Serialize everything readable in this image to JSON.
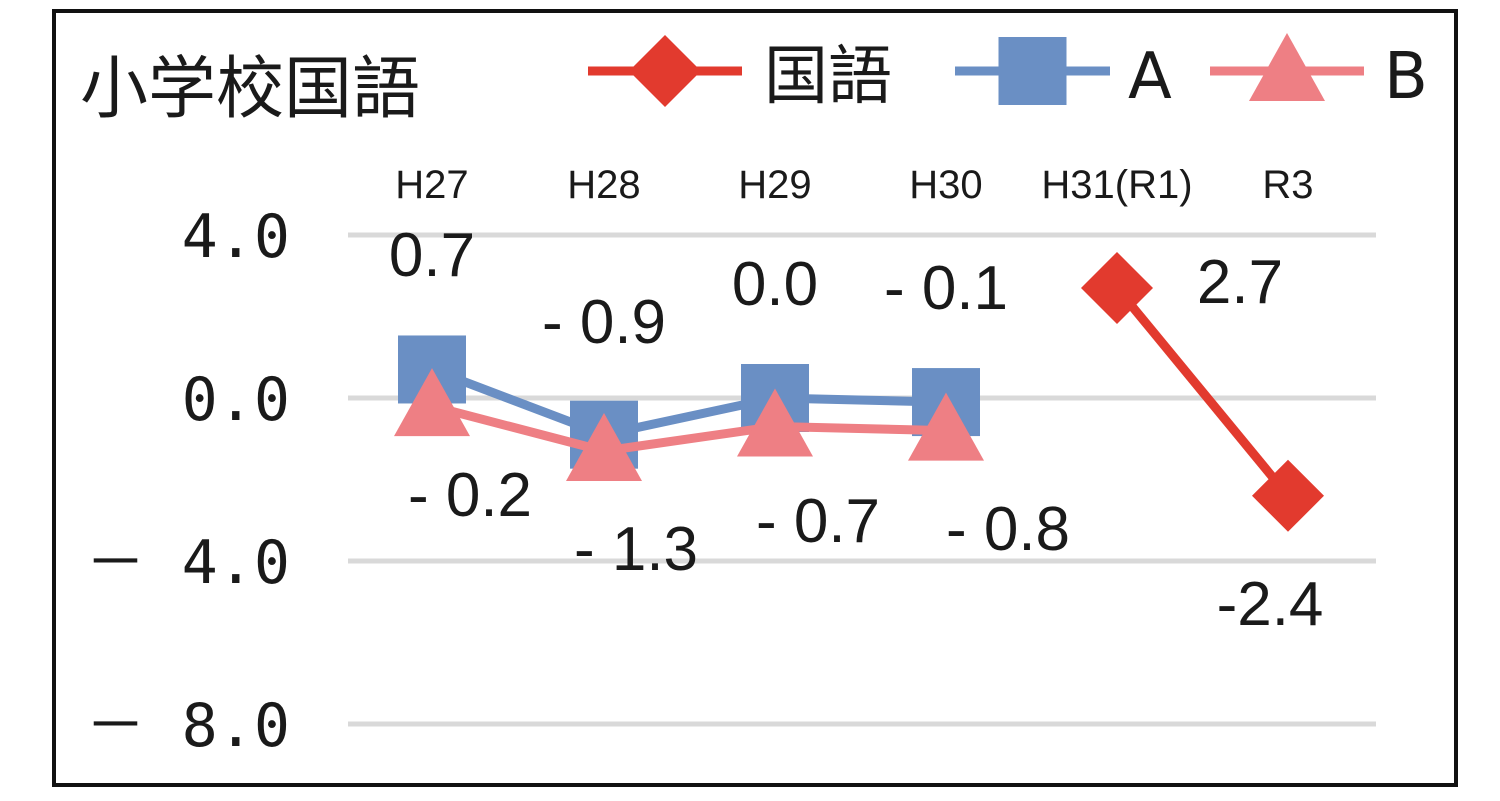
{
  "chart_data": {
    "type": "line",
    "title": "小学校国語",
    "categories": [
      "H27",
      "H28",
      "H29",
      "H30",
      "H31(R1)",
      "R3"
    ],
    "y_tick_labels": [
      "4.0",
      "0.0",
      "－ 4.0",
      "－ 8.0"
    ],
    "y_ticks": [
      4,
      0,
      -4,
      -8
    ],
    "ylim": [
      -8,
      4
    ],
    "grid": true,
    "legend_position": "top",
    "series": [
      {
        "name": "国語",
        "color": "#e23a2e",
        "marker": "diamond",
        "values": [
          null,
          null,
          null,
          null,
          2.7,
          -2.4
        ],
        "labels": [
          null,
          null,
          null,
          null,
          "2.7",
          "-2.4"
        ]
      },
      {
        "name": "A",
        "color": "#6a8fc4",
        "marker": "square",
        "values": [
          0.7,
          -0.9,
          0.0,
          -0.1,
          null,
          null
        ],
        "labels": [
          "0.7",
          "- 0.9",
          "0.0",
          "- 0.1",
          null,
          null
        ]
      },
      {
        "name": "B",
        "color": "#ee7f84",
        "marker": "triangle",
        "values": [
          -0.2,
          -1.3,
          -0.7,
          -0.8,
          null,
          null
        ],
        "labels": [
          "- 0.2",
          "- 1.3",
          "- 0.7",
          "- 0.8",
          null,
          null
        ]
      }
    ]
  }
}
